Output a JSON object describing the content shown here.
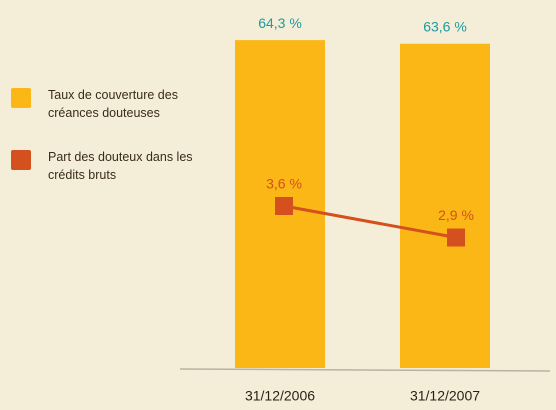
{
  "chart_data": {
    "type": "bar",
    "categories": [
      "31/12/2006",
      "31/12/2007"
    ],
    "series": [
      {
        "name": "Taux de couverture des créances douteuses",
        "color": "#fbb715",
        "values": [
          64.3,
          63.6
        ],
        "value_labels": [
          "64,3 %",
          "63,6 %"
        ],
        "label_color": "#1f9aa0"
      },
      {
        "name": "Part des douteux dans les crédits bruts",
        "type": "line",
        "axis": "y2",
        "color": "#d4501e",
        "values": [
          3.6,
          2.9
        ],
        "value_labels": [
          "3,6 %",
          "2,9 %"
        ],
        "label_color": "#d4501e"
      }
    ],
    "ylim": [
      0,
      70.6
    ],
    "y2lim": [
      0,
      8
    ]
  }
}
